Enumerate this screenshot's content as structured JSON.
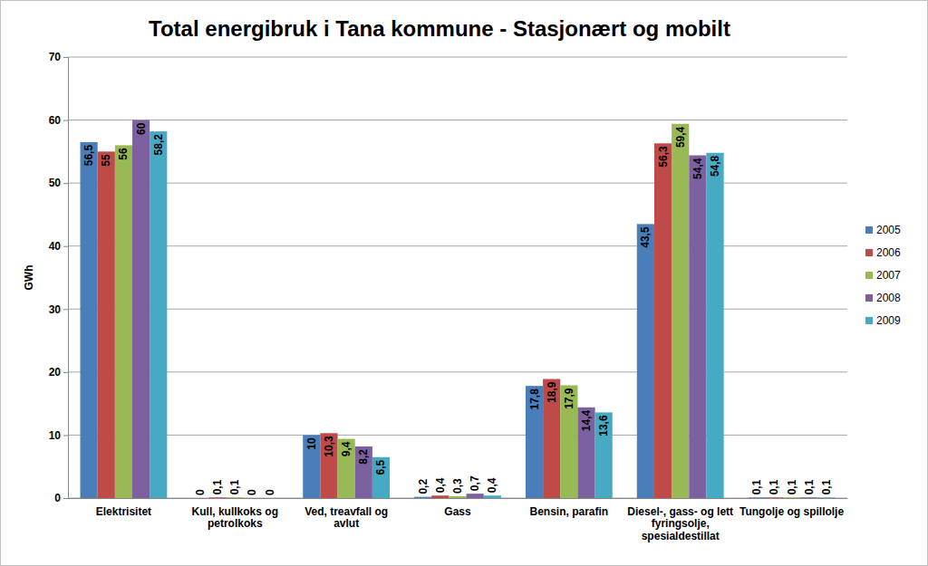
{
  "chart_data": {
    "type": "bar",
    "title": "Total energibruk i Tana kommune - Stasjonært og mobilt",
    "y_label": "GWh",
    "categories": [
      "Elektrisitet",
      "Kull, kullkoks og petrolkoks",
      "Ved, treavfall og avlut",
      "Gass",
      "Bensin, parafin",
      "Diesel-, gass- og lett fyringsolje, spesialdestillat",
      "Tungolje og spillolje"
    ],
    "series": [
      {
        "name": "2005",
        "color": "#4a7ebb",
        "values": [
          56.5,
          0,
          10,
          0.2,
          17.8,
          43.5,
          0.1
        ],
        "value_labels": [
          "56,5",
          "0",
          "10",
          "0,2",
          "17,8",
          "43,5",
          "0,1"
        ]
      },
      {
        "name": "2006",
        "color": "#be4b48",
        "values": [
          55,
          0.1,
          10.3,
          0.4,
          18.9,
          56.3,
          0.1
        ],
        "value_labels": [
          "55",
          "0,1",
          "10,3",
          "0,4",
          "18,9",
          "56,3",
          "0,1"
        ]
      },
      {
        "name": "2007",
        "color": "#98b954",
        "values": [
          56,
          0.1,
          9.4,
          0.3,
          17.9,
          59.4,
          0.1
        ],
        "value_labels": [
          "56",
          "0,1",
          "9,4",
          "0,3",
          "17,9",
          "59,4",
          "0,1"
        ]
      },
      {
        "name": "2008",
        "color": "#7d60a0",
        "values": [
          60,
          0,
          8.2,
          0.7,
          14.4,
          54.4,
          0.1
        ],
        "value_labels": [
          "60",
          "0",
          "8,2",
          "0,7",
          "14,4",
          "54,4",
          "0,1"
        ]
      },
      {
        "name": "2009",
        "color": "#46aac5",
        "values": [
          58.2,
          0,
          6.5,
          0.4,
          13.6,
          54.8,
          0.1
        ],
        "value_labels": [
          "58,2",
          "0",
          "6,5",
          "0,4",
          "13,6",
          "54,8",
          "0,1"
        ]
      }
    ],
    "ylim": [
      0,
      70
    ],
    "yticks": [
      0,
      10,
      20,
      30,
      40,
      50,
      60,
      70
    ],
    "grid": true,
    "legend": "right",
    "data_labels": true
  }
}
